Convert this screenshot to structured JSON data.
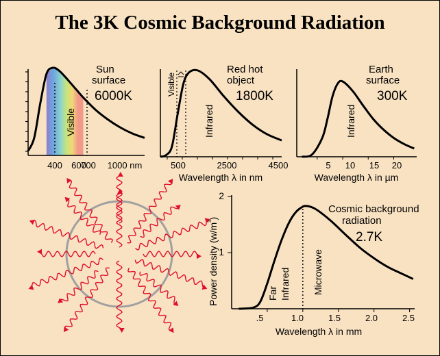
{
  "title": "The 3K Cosmic Background Radiation",
  "chart_data": [
    {
      "type": "line",
      "id": "sun",
      "annotation": [
        "Sun",
        "surface",
        "6000K"
      ],
      "region_label": "Visible",
      "xlabel": "",
      "x_ticks": [
        "400",
        "600",
        "700",
        "1000 nm"
      ],
      "x": [
        250,
        300,
        350,
        400,
        450,
        500,
        550,
        600,
        650,
        700,
        800,
        900,
        1000,
        1100,
        1200
      ],
      "values": [
        0.05,
        0.2,
        0.6,
        0.93,
        1.0,
        0.97,
        0.9,
        0.82,
        0.74,
        0.66,
        0.52,
        0.41,
        0.32,
        0.25,
        0.2
      ]
    },
    {
      "type": "line",
      "id": "redhot",
      "annotation": [
        "Red hot",
        "object",
        "1800K"
      ],
      "region_labels": [
        "Visible",
        "Infrared"
      ],
      "xlabel": "Wavelength λ in nm",
      "x_ticks": [
        "500",
        "2500",
        "4500"
      ],
      "x": [
        300,
        500,
        700,
        900,
        1100,
        1300,
        1600,
        2000,
        2500,
        3000,
        3500,
        4000,
        4500
      ],
      "values": [
        0.0,
        0.02,
        0.12,
        0.5,
        0.85,
        0.98,
        1.0,
        0.9,
        0.7,
        0.52,
        0.37,
        0.26,
        0.19
      ]
    },
    {
      "type": "line",
      "id": "earth",
      "annotation": [
        "Earth",
        "surface",
        "300K"
      ],
      "region_label": "Infrared",
      "xlabel": "Wavelength λ in µm",
      "x_ticks": [
        "5",
        "10",
        "15",
        "20"
      ],
      "x": [
        2,
        4,
        6,
        7,
        8,
        9,
        10,
        12,
        14,
        16,
        18,
        20,
        22,
        24
      ],
      "values": [
        0.0,
        0.03,
        0.25,
        0.5,
        0.8,
        0.97,
        1.0,
        0.87,
        0.68,
        0.5,
        0.36,
        0.25,
        0.17,
        0.11
      ]
    },
    {
      "type": "line",
      "id": "cmb",
      "annotation": [
        "Cosmic background",
        "radiation",
        "2.7K"
      ],
      "region_labels": [
        "Far",
        "Infrared",
        "Microwave"
      ],
      "xlabel": "Wavelength λ in mm",
      "ylabel": "Power density (w/m³)",
      "x_ticks": [
        ".5",
        "1.0",
        "1.5",
        "2.0",
        "2.5"
      ],
      "y_ticks": [
        "1",
        "2"
      ],
      "xlim": [
        0.0,
        2.6
      ],
      "ylim": [
        0,
        2
      ],
      "x": [
        0.1,
        0.3,
        0.4,
        0.5,
        0.6,
        0.7,
        0.8,
        0.9,
        1.0,
        1.05,
        1.1,
        1.2,
        1.4,
        1.6,
        1.8,
        2.0,
        2.2,
        2.4,
        2.55
      ],
      "values": [
        0.0,
        0.02,
        0.12,
        0.45,
        0.85,
        1.22,
        1.52,
        1.72,
        1.82,
        1.83,
        1.82,
        1.76,
        1.56,
        1.32,
        1.09,
        0.9,
        0.74,
        0.62,
        0.53
      ]
    }
  ],
  "colors": {
    "background": "#f9e2c2",
    "wave": "#e0102a",
    "circle": "#a0a0a0",
    "spectrum": [
      "#8c7fcf",
      "#6ea8e0",
      "#8fd6c8",
      "#c9e37a",
      "#f0d878",
      "#f29a8a"
    ]
  }
}
